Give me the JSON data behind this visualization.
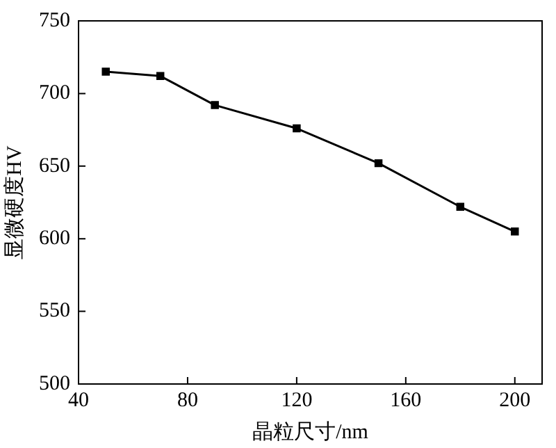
{
  "chart_data": {
    "type": "line",
    "xlabel": "晶粒尺寸/nm",
    "ylabel": "显微硬度HV",
    "x": [
      50,
      70,
      90,
      120,
      150,
      180,
      200
    ],
    "series": [
      {
        "color": "#000000",
        "values": [
          715,
          712,
          692,
          676,
          652,
          622,
          605
        ]
      }
    ],
    "xlim": [
      40,
      210
    ],
    "xticks": [
      40,
      80,
      120,
      160,
      200
    ],
    "ylim": [
      500,
      750
    ],
    "yticks": [
      500,
      550,
      600,
      650,
      700,
      750
    ],
    "grid": false,
    "legend": false,
    "marker": "square",
    "line_style": "solid"
  }
}
